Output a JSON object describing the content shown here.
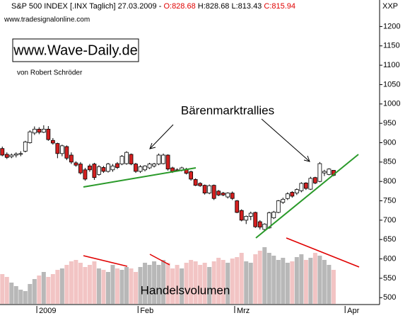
{
  "chart_data": {
    "type": "candlestick",
    "header": [
      "S&P 500 INDEX [.INX  Taglich] 27.03.2009 -",
      "O:828.68",
      "H:828.68 L:813.43",
      "C:815.94"
    ],
    "source": "www.tradesignalonline.com",
    "axis_label": "XXP",
    "brand": "www.Wave-Daily.de",
    "author": "von Robert Schröder",
    "annotation": "Bärenmarktrallies",
    "volume_label": "Handelsvolumen",
    "up_color": "#ffffff",
    "down_color": "#d42020",
    "volume_up_color": "#b8b8b8",
    "volume_down_color": "#f2c4c4",
    "ylim": [
      484,
      1241
    ],
    "yticks": [
      500,
      550,
      600,
      650,
      700,
      750,
      800,
      850,
      900,
      950,
      1000,
      1050,
      1100,
      1150,
      1200
    ],
    "xlim": [
      -0.5,
      82
    ],
    "xticks": [
      {
        "value": 7.5,
        "label": "2009"
      },
      {
        "value": 29.5,
        "label": "Feb"
      },
      {
        "value": 50.5,
        "label": "Mrz"
      },
      {
        "value": 74.5,
        "label": "Apr"
      }
    ],
    "volume_lim": [
      0,
      100
    ],
    "open": [
      885,
      870,
      864,
      868,
      870,
      878,
      900,
      925,
      935,
      927,
      935,
      906,
      898,
      872,
      890,
      868,
      848,
      845,
      830,
      840,
      845,
      818,
      836,
      826,
      830,
      846,
      845,
      846,
      870,
      845,
      826,
      830,
      835,
      840,
      845,
      846,
      868,
      835,
      830,
      829,
      832,
      825,
      805,
      795,
      790,
      770,
      790,
      775,
      770,
      760,
      770,
      750,
      725,
      700,
      710,
      720,
      696,
      676,
      680,
      706,
      720,
      746,
      756,
      772,
      770,
      776,
      796,
      780,
      810,
      800,
      822,
      818,
      828.68
    ],
    "high": [
      890,
      875,
      872,
      875,
      878,
      905,
      932,
      942,
      940,
      945,
      943,
      912,
      900,
      895,
      893,
      875,
      852,
      850,
      835,
      845,
      848,
      842,
      840,
      848,
      845,
      850,
      868,
      878,
      872,
      848,
      842,
      842,
      848,
      848,
      872,
      872,
      870,
      838,
      834,
      838,
      835,
      828,
      808,
      798,
      792,
      792,
      792,
      778,
      773,
      772,
      774,
      752,
      728,
      712,
      722,
      722,
      700,
      692,
      722,
      724,
      752,
      758,
      772,
      775,
      782,
      798,
      798,
      812,
      812,
      850,
      830,
      834,
      828.68
    ],
    "low": [
      865,
      858,
      860,
      862,
      865,
      875,
      898,
      920,
      922,
      925,
      905,
      895,
      860,
      865,
      855,
      845,
      838,
      818,
      802,
      825,
      804,
      815,
      822,
      823,
      825,
      832,
      842,
      843,
      842,
      822,
      822,
      826,
      832,
      836,
      842,
      844,
      828,
      822,
      826,
      826,
      818,
      802,
      788,
      786,
      766,
      767,
      752,
      762,
      762,
      756,
      752,
      718,
      697,
      690,
      700,
      680,
      676,
      672,
      678,
      703,
      718,
      742,
      752,
      758,
      765,
      772,
      778,
      778,
      793,
      798,
      814,
      816,
      813.43
    ],
    "close": [
      868,
      862,
      868,
      871,
      872,
      902,
      928,
      935,
      927,
      935,
      908,
      899,
      872,
      892,
      860,
      850,
      842,
      822,
      806,
      830,
      810,
      838,
      826,
      845,
      840,
      836,
      865,
      875,
      845,
      826,
      838,
      840,
      845,
      845,
      868,
      868,
      832,
      826,
      828,
      835,
      821,
      806,
      790,
      789,
      770,
      789,
      756,
      765,
      765,
      770,
      756,
      720,
      700,
      710,
      718,
      683,
      682,
      690,
      719,
      721,
      750,
      754,
      768,
      762,
      779,
      795,
      782,
      808,
      796,
      846,
      826,
      832,
      815.94
    ],
    "volume": [
      42,
      38,
      30,
      25,
      20,
      18,
      28,
      35,
      40,
      45,
      38,
      42,
      48,
      50,
      55,
      60,
      62,
      58,
      52,
      55,
      60,
      50,
      48,
      45,
      55,
      50,
      48,
      52,
      50,
      45,
      52,
      58,
      55,
      60,
      55,
      62,
      58,
      50,
      55,
      50,
      58,
      62,
      60,
      55,
      58,
      52,
      60,
      65,
      62,
      58,
      64,
      66,
      72,
      60,
      58,
      70,
      75,
      80,
      72,
      68,
      62,
      65,
      58,
      60,
      66,
      70,
      62,
      65,
      72,
      68,
      62,
      55,
      48
    ]
  }
}
